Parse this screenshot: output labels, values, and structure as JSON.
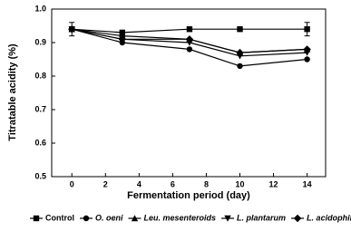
{
  "chart_data": {
    "type": "line",
    "x_label": "Fermentation period (day)",
    "y_label": "Titratable acidity (%)",
    "x": [
      0,
      3,
      7,
      10,
      14
    ],
    "xlim": [
      -1.2,
      15.1
    ],
    "xticks": [
      0,
      2,
      4,
      6,
      8,
      10,
      12,
      14
    ],
    "ylim": [
      0.5,
      1.0
    ],
    "yticks": [
      0.5,
      0.6,
      0.7,
      0.8,
      0.9,
      {
        "value": 1,
        "label": "1.0"
      }
    ],
    "grid": false,
    "legend": "bottom",
    "series": [
      {
        "name": "Control",
        "color": "#000000",
        "marker": "square",
        "font_style": "normal",
        "values": [
          0.94,
          0.93,
          0.94,
          0.94,
          0.94
        ],
        "errors": [
          0.02,
          0,
          0,
          0,
          0.02
        ]
      },
      {
        "name": "O. oeni",
        "color": "#000000",
        "marker": "circle",
        "font_style": "italic",
        "values": [
          0.94,
          0.9,
          0.88,
          0.83,
          0.85
        ]
      },
      {
        "name": "Leu. mesenteroids",
        "color": "#000000",
        "marker": "triangle-up",
        "font_style": "italic",
        "values": [
          0.94,
          0.92,
          0.91,
          0.87,
          0.88
        ]
      },
      {
        "name": "L. plantarum",
        "color": "#000000",
        "marker": "triangle-down",
        "font_style": "italic",
        "values": [
          0.94,
          0.91,
          0.9,
          0.86,
          0.87
        ]
      },
      {
        "name": "L. acidophilus",
        "color": "#000000",
        "marker": "diamond",
        "font_style": "italic",
        "values": [
          0.94,
          0.91,
          0.91,
          0.87,
          0.88
        ]
      }
    ]
  }
}
